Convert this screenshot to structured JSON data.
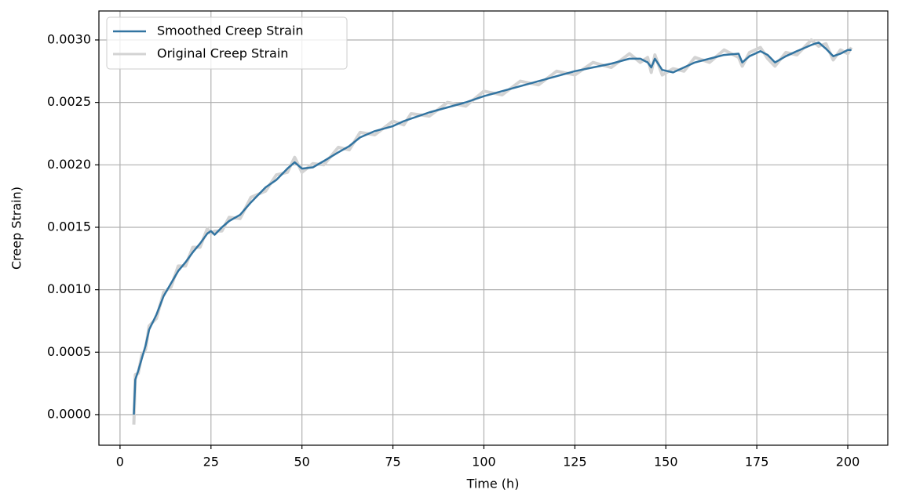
{
  "chart_data": {
    "type": "line",
    "x_label": "Time (h)",
    "y_label": "Creep Strain)",
    "x": [
      3.8,
      4.2,
      5,
      6,
      7,
      8,
      10,
      12,
      14,
      16,
      18,
      20,
      22,
      24,
      25,
      26,
      28,
      30,
      33,
      36,
      40,
      43,
      46,
      48,
      50,
      53,
      56,
      60,
      63,
      66,
      70,
      75,
      78,
      80,
      85,
      90,
      95,
      100,
      105,
      110,
      115,
      120,
      125,
      130,
      135,
      140,
      143,
      145,
      146,
      147,
      149,
      152,
      155,
      158,
      162,
      166,
      170,
      171,
      173,
      176,
      178,
      180,
      183,
      186,
      190,
      192,
      194,
      196,
      198,
      200,
      201
    ],
    "series": [
      {
        "name": "Smoothed Creep Strain",
        "color": "#3274a1",
        "values": [
          0.0,
          0.00028,
          0.00035,
          0.00045,
          0.00055,
          0.00068,
          0.0008,
          0.00095,
          0.00105,
          0.00115,
          0.00122,
          0.0013,
          0.00137,
          0.00145,
          0.00147,
          0.00144,
          0.0015,
          0.00155,
          0.0016,
          0.0017,
          0.00182,
          0.00188,
          0.00197,
          0.00202,
          0.00197,
          0.00198,
          0.00203,
          0.0021,
          0.00215,
          0.00222,
          0.00227,
          0.00231,
          0.00235,
          0.00237,
          0.00242,
          0.00246,
          0.0025,
          0.00255,
          0.00259,
          0.00263,
          0.00267,
          0.00271,
          0.00275,
          0.00278,
          0.00281,
          0.00285,
          0.00285,
          0.00282,
          0.00278,
          0.00285,
          0.00276,
          0.00274,
          0.00278,
          0.00282,
          0.00285,
          0.00288,
          0.00289,
          0.00282,
          0.00287,
          0.00291,
          0.00288,
          0.00282,
          0.00287,
          0.00291,
          0.00296,
          0.00298,
          0.00293,
          0.00287,
          0.00289,
          0.00292,
          0.00292
        ]
      },
      {
        "name": "Original Creep Strain",
        "color": "#d3d3d3",
        "values": [
          -8e-05,
          0.00032,
          0.00033,
          0.00048,
          0.00052,
          0.00071,
          0.00077,
          0.00098,
          0.00102,
          0.00119,
          0.00119,
          0.00134,
          0.00134,
          0.00149,
          0.00145,
          0.00147,
          0.00147,
          0.00158,
          0.00157,
          0.00174,
          0.00179,
          0.00192,
          0.00194,
          0.00206,
          0.00194,
          0.00201,
          0.002,
          0.00214,
          0.00212,
          0.00226,
          0.00224,
          0.00235,
          0.00232,
          0.00241,
          0.00239,
          0.0025,
          0.00247,
          0.00259,
          0.00256,
          0.00267,
          0.00264,
          0.00275,
          0.00272,
          0.00282,
          0.00278,
          0.00289,
          0.00282,
          0.00286,
          0.00274,
          0.00288,
          0.00272,
          0.00277,
          0.00275,
          0.00286,
          0.00282,
          0.00292,
          0.00286,
          0.00279,
          0.0029,
          0.00294,
          0.00285,
          0.00279,
          0.0029,
          0.00288,
          0.003,
          0.00295,
          0.00297,
          0.00284,
          0.00292,
          0.00289,
          0.00294
        ]
      }
    ],
    "xlim": [
      -5.8,
      211
    ],
    "ylim": [
      -0.000245,
      0.003232
    ],
    "xticks": [
      0,
      25,
      50,
      75,
      100,
      125,
      150,
      175,
      200
    ],
    "yticks": [
      {
        "value": 0,
        "label": "0.0000"
      },
      {
        "value": 0.0005,
        "label": "0.0005"
      },
      {
        "value": 0.001,
        "label": "0.0010"
      },
      {
        "value": 0.0015,
        "label": "0.0015"
      },
      {
        "value": 0.002,
        "label": "0.0020"
      },
      {
        "value": 0.0025,
        "label": "0.0025"
      },
      {
        "value": 0.003,
        "label": "0.0030"
      }
    ],
    "grid": true,
    "legend": "upper-left"
  }
}
